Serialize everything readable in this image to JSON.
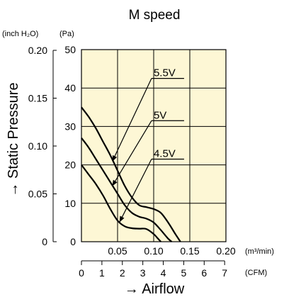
{
  "chart_data": {
    "type": "line",
    "title": "M speed",
    "ylabel": "→ Static Pressure",
    "xlabel": "→ Airflow",
    "y_units": {
      "inch": "(inch H₂O)",
      "pa": "(Pa)"
    },
    "x_units": {
      "m3min": "(m³/min)",
      "cfm": "(CFM)"
    },
    "y_pa_ticks": [
      0,
      10,
      20,
      30,
      40,
      50
    ],
    "y_inch_ticks": [
      {
        "value": 0,
        "label": "0"
      },
      {
        "value": 0.05,
        "label": "0.05"
      },
      {
        "value": 0.1,
        "label": "0.10"
      },
      {
        "value": 0.15,
        "label": "0.15"
      },
      {
        "value": 0.2,
        "label": "0.20"
      }
    ],
    "x_m3_ticks": [
      {
        "value": 0.05,
        "label": "0.05"
      },
      {
        "value": 0.1,
        "label": "0.10"
      },
      {
        "value": 0.15,
        "label": "0.15"
      },
      {
        "value": 0.2,
        "label": "0.20"
      }
    ],
    "x_cfm_ticks": [
      0,
      1,
      2,
      3,
      4,
      5,
      6,
      7
    ],
    "xlim": [
      0,
      0.2
    ],
    "ylim": [
      0,
      50
    ],
    "grid": true,
    "background": "#fdf7d5",
    "series": [
      {
        "name": "5.5V",
        "x": [
          0,
          0.01,
          0.02,
          0.03,
          0.04,
          0.05,
          0.06,
          0.07,
          0.08,
          0.09,
          0.1,
          0.11,
          0.12,
          0.13,
          0.137
        ],
        "y": [
          35,
          32.5,
          29.5,
          26,
          22.5,
          18.5,
          14.5,
          11.5,
          9.5,
          9,
          8.5,
          7.5,
          5,
          2,
          0
        ]
      },
      {
        "name": "5V",
        "x": [
          0,
          0.01,
          0.02,
          0.03,
          0.04,
          0.05,
          0.06,
          0.07,
          0.08,
          0.09,
          0.1,
          0.11,
          0.12,
          0.125
        ],
        "y": [
          27,
          24.5,
          21.5,
          18.5,
          15.5,
          12.5,
          9.5,
          7.5,
          6.5,
          6,
          5,
          3,
          0.8,
          0
        ]
      },
      {
        "name": "4.5V",
        "x": [
          0,
          0.01,
          0.02,
          0.03,
          0.04,
          0.05,
          0.06,
          0.07,
          0.08,
          0.09,
          0.1,
          0.105,
          0.11
        ],
        "y": [
          20,
          17.5,
          15,
          12,
          8.5,
          5.5,
          4,
          3.5,
          3.4,
          3.3,
          2,
          1,
          0
        ]
      }
    ],
    "annotations": [
      {
        "series": "5.5V",
        "label": "5.5V",
        "label_x": 0.097,
        "label_y": 42.5,
        "arrow_to_x": 0.043,
        "arrow_to_y": 21.0
      },
      {
        "series": "5V",
        "label": "5V",
        "label_x": 0.097,
        "label_y": 31.5,
        "arrow_to_x": 0.043,
        "arrow_to_y": 14.6
      },
      {
        "series": "4.5V",
        "label": "4.5V",
        "label_x": 0.097,
        "label_y": 21.5,
        "arrow_to_x": 0.053,
        "arrow_to_y": 5.2
      }
    ]
  }
}
